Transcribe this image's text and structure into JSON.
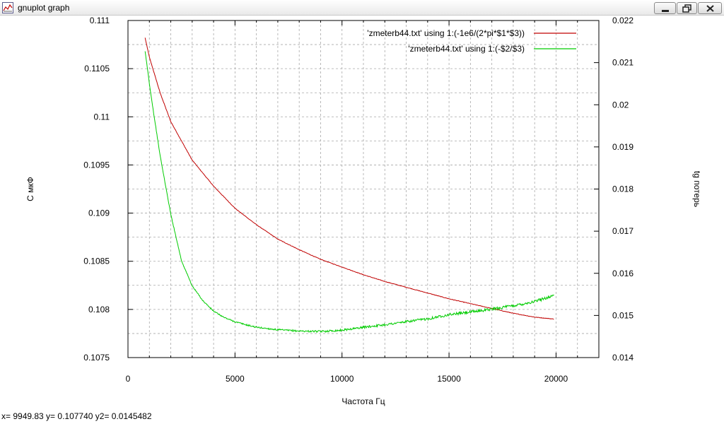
{
  "window": {
    "title": "gnuplot graph",
    "icon": "gnuplot-graph-icon",
    "buttons": [
      "minimize-icon",
      "maximize-icon",
      "close-icon"
    ]
  },
  "status_bar": {
    "text": "x= 9949.83 y= 0.107740 y2= 0.0145482"
  },
  "chart_data": {
    "type": "line",
    "title": "",
    "xlabel": "Частота Гц",
    "ylabel": "С мкФ",
    "y2label": "tg потерь",
    "xlim": [
      0,
      22000
    ],
    "ylim": [
      0.1075,
      0.111
    ],
    "y2lim": [
      0.014,
      0.022
    ],
    "x_ticks": [
      "0",
      "5000",
      "10000",
      "15000",
      "20000"
    ],
    "y_ticks": [
      "0.1075",
      "0.108",
      "0.1085",
      "0.109",
      "0.1095",
      "0.11",
      "0.1105",
      "0.111"
    ],
    "y2_ticks": [
      "0.014",
      "0.015",
      "0.016",
      "0.017",
      "0.018",
      "0.019",
      "0.02",
      "0.021",
      "0.022"
    ],
    "grid": true,
    "legend_position": "top-right",
    "series": [
      {
        "name": "'zmeterb44.txt' using 1:(-1e6/(2*pi*$1*$3))",
        "axis": "y",
        "color": "#c00000",
        "x": [
          800,
          1000,
          1500,
          2000,
          3000,
          4000,
          5000,
          6000,
          7000,
          8000,
          9000,
          10000,
          11000,
          12000,
          13000,
          14000,
          15000,
          16000,
          17000,
          18000,
          19000,
          19900
        ],
        "y": [
          0.11082,
          0.11062,
          0.11025,
          0.10995,
          0.10955,
          0.10928,
          0.10905,
          0.10888,
          0.10873,
          0.10862,
          0.10852,
          0.10844,
          0.10836,
          0.10829,
          0.10823,
          0.10817,
          0.10811,
          0.10806,
          0.10801,
          0.10796,
          0.10792,
          0.1079
        ]
      },
      {
        "name": "'zmeterb44.txt' using 1:(-$2/$3)",
        "axis": "y2",
        "color": "#00cc00",
        "x": [
          800,
          900,
          1000,
          1200,
          1500,
          2000,
          2500,
          3000,
          3500,
          4000,
          4500,
          5000,
          5500,
          6000,
          7000,
          8000,
          9000,
          10000,
          11000,
          12000,
          13000,
          14000,
          15000,
          16000,
          17000,
          18000,
          19000,
          19900
        ],
        "y": [
          0.02126,
          0.0209,
          0.0205,
          0.0198,
          0.0188,
          0.0174,
          0.0163,
          0.0157,
          0.01535,
          0.0151,
          0.01495,
          0.01485,
          0.01478,
          0.01472,
          0.01466,
          0.01463,
          0.01462,
          0.01465,
          0.01472,
          0.01478,
          0.01485,
          0.01492,
          0.01502,
          0.01508,
          0.01515,
          0.01523,
          0.01533,
          0.01548
        ]
      }
    ]
  }
}
